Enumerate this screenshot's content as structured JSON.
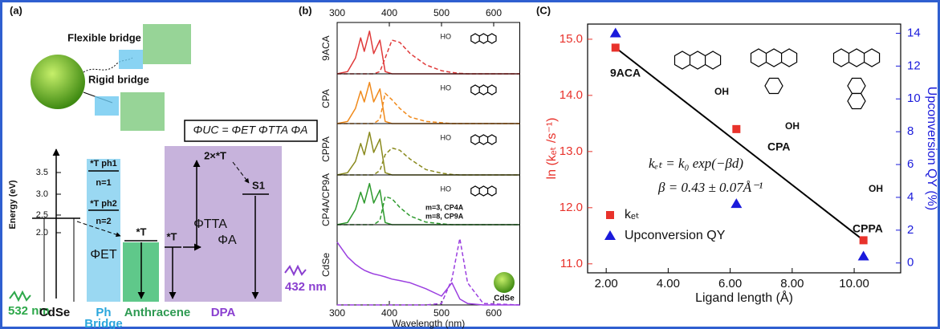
{
  "panel_a": {
    "label": "(a)",
    "flexible_bridge": "Flexible bridge",
    "rigid_bridge": "Rigid bridge",
    "equation": "ΦUC = ΦET ΦTTA ΦA",
    "energy_axis": {
      "label": "Energy (eV)",
      "ticks": [
        "3.5",
        "3.0",
        "2.5",
        "2.0"
      ]
    },
    "levels": {
      "t_ph1": "*T ph1",
      "n1": "n=1",
      "t_ph2": "*T ph2",
      "n2": "n=2",
      "phi_et": "ΦET",
      "t_anth": "*T",
      "t_dpa": "*T",
      "phi_tta": "ΦTTA",
      "two_t": "2×*T",
      "s1": "S1",
      "phi_a": "ΦA"
    },
    "excitation": "532 nm",
    "emission": "432 nm",
    "components": [
      "CdSe",
      "Ph",
      "Anthracene",
      "DPA"
    ],
    "bridge": "Bridge"
  },
  "chart_data": [
    {
      "type": "spectra",
      "panel_label": "(b)",
      "xlabel": "Wavelength (nm)",
      "xlim": [
        300,
        650
      ],
      "xticks": [
        300,
        400,
        500,
        600
      ],
      "x": [
        300,
        320,
        335,
        345,
        352,
        362,
        370,
        382,
        392,
        405,
        420,
        440,
        470,
        500,
        520,
        535,
        550,
        580,
        650
      ],
      "series": [
        {
          "name": "9ACA",
          "color": "#e03a3a",
          "absorbance": [
            0,
            0.05,
            0.35,
            0.8,
            0.5,
            0.95,
            0.45,
            0.75,
            0.05,
            0,
            0,
            0,
            0,
            0,
            0,
            0,
            0,
            0,
            0
          ],
          "emission": [
            0,
            0,
            0,
            0,
            0,
            0,
            0,
            0.05,
            0.35,
            0.75,
            0.7,
            0.45,
            0.2,
            0.07,
            0.03,
            0.01,
            0,
            0,
            0
          ]
        },
        {
          "name": "CPA",
          "color": "#f08a1c",
          "absorbance": [
            0,
            0.05,
            0.35,
            0.75,
            0.5,
            0.95,
            0.5,
            0.8,
            0.05,
            0,
            0,
            0,
            0,
            0,
            0,
            0,
            0,
            0,
            0
          ],
          "emission": [
            0,
            0,
            0,
            0,
            0,
            0,
            0,
            0.1,
            0.7,
            0.55,
            0.35,
            0.15,
            0.05,
            0.02,
            0,
            0,
            0,
            0,
            0
          ]
        },
        {
          "name": "CPPA",
          "color": "#8a8a1e",
          "absorbance": [
            0,
            0.05,
            0.3,
            0.7,
            0.45,
            0.95,
            0.5,
            0.8,
            0.05,
            0,
            0,
            0,
            0,
            0,
            0,
            0,
            0,
            0,
            0
          ],
          "emission": [
            0,
            0,
            0,
            0,
            0,
            0,
            0,
            0.1,
            0.45,
            0.6,
            0.55,
            0.35,
            0.12,
            0.04,
            0.01,
            0,
            0,
            0,
            0
          ]
        },
        {
          "name": "CP4A/CP9A",
          "color": "#2e9a2e",
          "absorbance": [
            0,
            0.05,
            0.35,
            0.75,
            0.5,
            0.95,
            0.5,
            0.8,
            0.05,
            0,
            0,
            0,
            0,
            0,
            0,
            0,
            0,
            0,
            0
          ],
          "emission": [
            0,
            0,
            0,
            0,
            0,
            0,
            0,
            0.1,
            0.65,
            0.6,
            0.4,
            0.2,
            0.06,
            0.02,
            0,
            0,
            0,
            0,
            0
          ]
        },
        {
          "name": "CdSe",
          "color": "#9b3fe0",
          "absorbance": [
            0.85,
            0.65,
            0.55,
            0.5,
            0.47,
            0.44,
            0.42,
            0.4,
            0.38,
            0.35,
            0.33,
            0.3,
            0.22,
            0.12,
            0.3,
            0.08,
            0.02,
            0,
            0
          ],
          "emission": [
            0,
            0,
            0,
            0,
            0,
            0,
            0,
            0,
            0,
            0,
            0,
            0,
            0,
            0.02,
            0.35,
            0.9,
            0.3,
            0.02,
            0
          ]
        }
      ],
      "structure_labels": [
        "HO",
        "HO",
        "HO",
        "HO"
      ],
      "annotations": [
        "m=3, CP4A",
        "m=8, CP9A",
        "CdSe"
      ]
    },
    {
      "type": "scatter",
      "panel_label": "(C)",
      "xlabel": "Ligand length (Å)",
      "ylabel": "ln (kₑₜ /s⁻¹)",
      "y2label": "Upconversion QY (%)",
      "x": [
        2.3,
        6.2,
        10.3
      ],
      "series": [
        {
          "name": "kₑₜ",
          "color": "#e8322b",
          "marker": "square",
          "values": [
            14.85,
            13.4,
            11.42
          ]
        },
        {
          "name": "Upconversion QY",
          "color": "#1a1adb",
          "marker": "triangle",
          "axis": "y2",
          "values": [
            14.0,
            3.6,
            0.4
          ]
        }
      ],
      "fit": {
        "x": [
          2.3,
          10.3
        ],
        "values": [
          14.85,
          11.42
        ],
        "color": "#000000"
      },
      "xlim": [
        1.4,
        11.5
      ],
      "xticks": [
        {
          "value": 2,
          "label": "2.00"
        },
        {
          "value": 4,
          "label": "4.00"
        },
        {
          "value": 6,
          "label": "6.00"
        },
        {
          "value": 8,
          "label": "8.00"
        },
        {
          "value": 10,
          "label": "10.00"
        }
      ],
      "ylim": [
        10.84,
        15.27
      ],
      "yticks": [
        {
          "value": 11,
          "label": "11.0"
        },
        {
          "value": 12,
          "label": "12.0"
        },
        {
          "value": 13,
          "label": "13.0"
        },
        {
          "value": 14,
          "label": "14.0"
        },
        {
          "value": 15,
          "label": "15.0"
        }
      ],
      "y2lim": [
        -0.6,
        14.56
      ],
      "y2ticks": [
        0,
        2,
        4,
        6,
        8,
        10,
        12,
        14
      ],
      "annotations": [
        "9ACA",
        "CPA",
        "CPPA"
      ],
      "equations": [
        "kₑₜ = k₀ exp(−βd)",
        "β = 0.43 ± 0.07Å⁻¹"
      ],
      "structure_labels": [
        "OH",
        "OH",
        "OH"
      ],
      "legend": "lower left"
    }
  ]
}
